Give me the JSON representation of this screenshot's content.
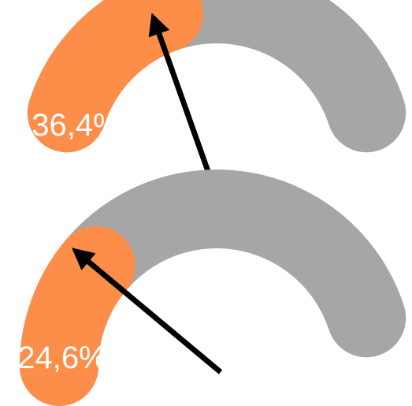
{
  "chart_data": [
    {
      "type": "gauge",
      "value": 36.4,
      "range": [
        0,
        100
      ],
      "label": "36,4%",
      "colors": {
        "fill": "#fd8e4a",
        "track": "#a6a6a6",
        "needle": "#000000"
      }
    },
    {
      "type": "gauge",
      "value": 24.6,
      "range": [
        0,
        100
      ],
      "label": "24,6%",
      "colors": {
        "fill": "#fd8e4a",
        "track": "#a6a6a6",
        "needle": "#000000"
      }
    }
  ]
}
